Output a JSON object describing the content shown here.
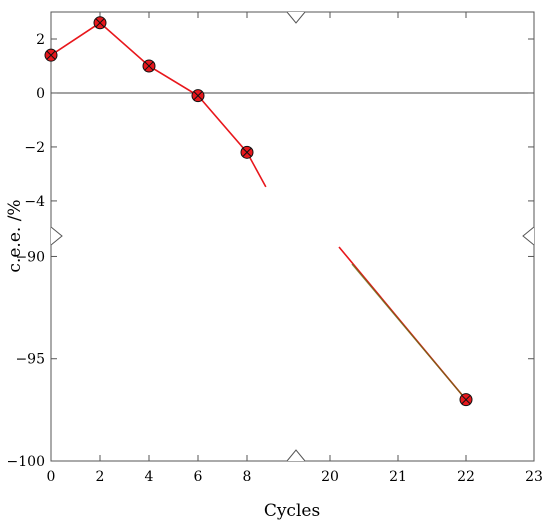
{
  "chart_data": {
    "type": "line",
    "title": "",
    "xlabel": "Cycles",
    "ylabel": "c.e.e. /%",
    "grid": false,
    "legend": "none",
    "broken_axes": true,
    "x_segments": [
      {
        "range": [
          0,
          10
        ],
        "ticks": [
          0,
          2,
          4,
          6,
          8
        ]
      },
      {
        "range": [
          19.5,
          23
        ],
        "ticks": [
          20,
          21,
          22,
          23
        ]
      }
    ],
    "y_segments": [
      {
        "range": [
          -5.3,
          3
        ],
        "ticks": [
          2,
          0,
          -2,
          -4
        ]
      },
      {
        "range": [
          -100,
          -89
        ],
        "ticks": [
          -90,
          -95,
          -100
        ]
      }
    ],
    "reference_line": {
      "y": 0
    },
    "series": [
      {
        "color": "#e8171c",
        "x": [
          0,
          2,
          4,
          6,
          8,
          22
        ],
        "y": [
          1.4,
          2.6,
          1.0,
          -0.1,
          -2.2,
          -97.0
        ]
      }
    ],
    "tick_labels_x": [
      "0",
      "2",
      "4",
      "6",
      "8",
      "20",
      "21",
      "22",
      "23"
    ],
    "tick_labels_y": [
      "2",
      "0",
      "−2",
      "−4",
      "−90",
      "−95",
      "−100"
    ]
  }
}
